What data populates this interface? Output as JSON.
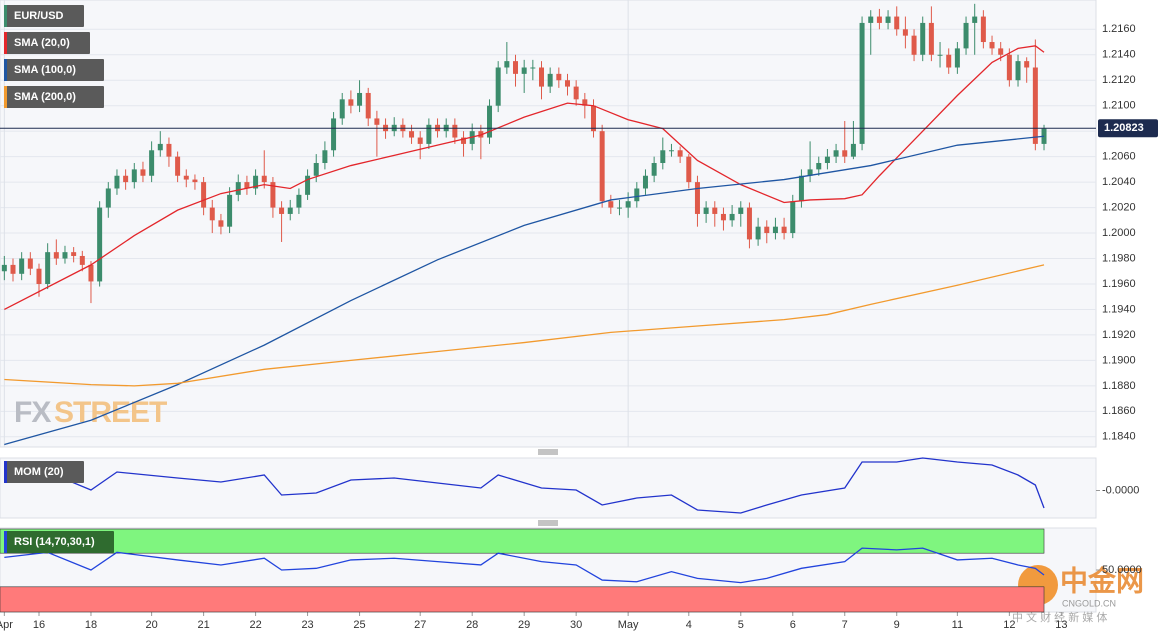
{
  "chart_data": [
    {
      "type": "candlestick",
      "title": "EUR/USD",
      "xlim": [
        -0.5,
        126
      ],
      "ylim": [
        1.1832,
        1.2183
      ],
      "xticks": [
        {
          "value": 0,
          "label": "Apr"
        },
        {
          "value": 4,
          "label": "16"
        },
        {
          "value": 10,
          "label": "18"
        },
        {
          "value": 17,
          "label": "20"
        },
        {
          "value": 23,
          "label": "21"
        },
        {
          "value": 29,
          "label": "22"
        },
        {
          "value": 35,
          "label": "23"
        },
        {
          "value": 41,
          "label": "25"
        },
        {
          "value": 48,
          "label": "27"
        },
        {
          "value": 54,
          "label": "28"
        },
        {
          "value": 60,
          "label": "29"
        },
        {
          "value": 66,
          "label": "30"
        },
        {
          "value": 72,
          "label": "May"
        },
        {
          "value": 79,
          "label": "4"
        },
        {
          "value": 85,
          "label": "5"
        },
        {
          "value": 91,
          "label": "6"
        },
        {
          "value": 97,
          "label": "7"
        },
        {
          "value": 103,
          "label": "9"
        },
        {
          "value": 110,
          "label": "11"
        },
        {
          "value": 116,
          "label": "12"
        },
        {
          "value": 122,
          "label": "13"
        }
      ],
      "yticks": [
        {
          "value": 1.184,
          "label": "1.1840"
        },
        {
          "value": 1.186,
          "label": "1.1860"
        },
        {
          "value": 1.188,
          "label": "1.1880"
        },
        {
          "value": 1.19,
          "label": "1.1900"
        },
        {
          "value": 1.192,
          "label": "1.1920"
        },
        {
          "value": 1.194,
          "label": "1.1940"
        },
        {
          "value": 1.196,
          "label": "1.1960"
        },
        {
          "value": 1.198,
          "label": "1.1980"
        },
        {
          "value": 1.2,
          "label": "1.2000"
        },
        {
          "value": 1.202,
          "label": "1.2020"
        },
        {
          "value": 1.204,
          "label": "1.2040"
        },
        {
          "value": 1.206,
          "label": "1.2060"
        },
        {
          "value": 1.208,
          "label": "1.2080"
        },
        {
          "value": 1.21,
          "label": "1.2100"
        },
        {
          "value": 1.212,
          "label": "1.2120"
        },
        {
          "value": 1.214,
          "label": "1.2140"
        },
        {
          "value": 1.216,
          "label": "1.2160"
        }
      ],
      "grid": true,
      "up_color": "#3c8c6c",
      "down_color": "#df5a4a",
      "last_price": 1.20823,
      "last_price_color": "#1d2b4f",
      "open": [
        1.197,
        1.1975,
        1.1968,
        1.198,
        1.1972,
        1.196,
        1.1985,
        1.198,
        1.1985,
        1.1982,
        1.1975,
        1.1962,
        1.202,
        1.2035,
        1.2045,
        1.204,
        1.205,
        1.2045,
        1.2065,
        1.207,
        1.206,
        1.2045,
        1.2042,
        1.204,
        1.202,
        1.201,
        1.2005,
        1.203,
        1.204,
        1.2035,
        1.2045,
        1.204,
        1.202,
        1.2015,
        1.202,
        1.203,
        1.2045,
        1.2055,
        1.2065,
        1.209,
        1.2105,
        1.21,
        1.211,
        1.209,
        1.2085,
        1.208,
        1.2085,
        1.208,
        1.2075,
        1.207,
        1.2085,
        1.208,
        1.2085,
        1.2075,
        1.207,
        1.208,
        1.2075,
        1.21,
        1.213,
        1.2135,
        1.2125,
        1.213,
        1.213,
        1.2115,
        1.2125,
        1.212,
        1.2115,
        1.2105,
        1.21,
        1.208,
        1.2025,
        1.202,
        1.202,
        1.2025,
        1.2035,
        1.2045,
        1.2055,
        1.2065,
        1.2065,
        1.206,
        1.204,
        1.2015,
        1.202,
        1.2015,
        1.201,
        1.2015,
        1.202,
        1.1995,
        1.2005,
        1.2,
        1.2005,
        1.2,
        1.2025,
        1.2045,
        1.205,
        1.2055,
        1.206,
        1.2065,
        1.206,
        1.207,
        1.2165,
        1.217,
        1.2165,
        1.217,
        1.216,
        1.2155,
        1.214,
        1.2165,
        1.214,
        1.214,
        1.213,
        1.2145,
        1.2165,
        1.217,
        1.215,
        1.2145,
        1.214,
        1.212,
        1.2135,
        1.213,
        1.207
      ],
      "high": [
        1.1982,
        1.198,
        1.1985,
        1.1985,
        1.1976,
        1.1992,
        1.1995,
        1.199,
        1.1989,
        1.1986,
        1.1978,
        1.2025,
        1.204,
        1.205,
        1.205,
        1.2055,
        1.2056,
        1.2072,
        1.208,
        1.2075,
        1.2064,
        1.205,
        1.2046,
        1.2044,
        1.2026,
        1.2015,
        1.2036,
        1.2046,
        1.2045,
        1.205,
        1.2065,
        1.2044,
        1.2025,
        1.2026,
        1.2035,
        1.205,
        1.2062,
        1.2072,
        1.2095,
        1.211,
        1.2112,
        1.212,
        1.2114,
        1.2096,
        1.209,
        1.2091,
        1.209,
        1.2085,
        1.208,
        1.209,
        1.209,
        1.209,
        1.209,
        1.208,
        1.2086,
        1.2085,
        1.2105,
        1.2135,
        1.215,
        1.214,
        1.2136,
        1.2136,
        1.2135,
        1.213,
        1.213,
        1.2125,
        1.212,
        1.211,
        1.2105,
        1.2085,
        1.203,
        1.2026,
        1.2032,
        1.204,
        1.205,
        1.206,
        1.2075,
        1.207,
        1.2068,
        1.2062,
        1.2045,
        1.2025,
        1.2025,
        1.202,
        1.2022,
        1.2025,
        1.2024,
        1.2012,
        1.201,
        1.2012,
        1.2012,
        1.203,
        1.205,
        1.2072,
        1.206,
        1.2066,
        1.207,
        1.2088,
        1.2088,
        1.217,
        1.2175,
        1.2176,
        1.2175,
        1.2178,
        1.217,
        1.216,
        1.217,
        1.2178,
        1.215,
        1.2145,
        1.215,
        1.217,
        1.218,
        1.2175,
        1.2155,
        1.215,
        1.2145,
        1.214,
        1.2138,
        1.2152,
        1.2085
      ],
      "low": [
        1.1963,
        1.1962,
        1.1963,
        1.1967,
        1.195,
        1.1956,
        1.1975,
        1.1976,
        1.1977,
        1.197,
        1.1945,
        1.1958,
        1.2012,
        1.203,
        1.2034,
        1.2035,
        1.204,
        1.204,
        1.206,
        1.2052,
        1.204,
        1.2036,
        1.2034,
        1.2014,
        1.2,
        1.1999,
        1.2,
        1.2025,
        1.203,
        1.203,
        1.2035,
        1.2012,
        1.1993,
        1.201,
        1.2015,
        1.2026,
        1.204,
        1.205,
        1.206,
        1.2085,
        1.2094,
        1.2095,
        1.2084,
        1.206,
        1.2074,
        1.2076,
        1.2075,
        1.207,
        1.2058,
        1.2066,
        1.2075,
        1.2075,
        1.207,
        1.206,
        1.2065,
        1.2058,
        1.207,
        1.2095,
        1.2125,
        1.2115,
        1.211,
        1.212,
        1.2105,
        1.211,
        1.2114,
        1.2108,
        1.21,
        1.209,
        1.2075,
        1.202,
        1.2015,
        1.2014,
        1.2012,
        1.202,
        1.203,
        1.204,
        1.205,
        1.206,
        1.2055,
        1.2035,
        1.2005,
        1.2008,
        1.2005,
        1.2002,
        1.2005,
        1.2005,
        1.1988,
        1.199,
        1.1992,
        1.1995,
        1.1995,
        1.1996,
        1.202,
        1.204,
        1.2045,
        1.205,
        1.2055,
        1.2055,
        1.2058,
        1.2065,
        1.214,
        1.216,
        1.216,
        1.2155,
        1.2145,
        1.2135,
        1.2135,
        1.2135,
        1.213,
        1.2125,
        1.2125,
        1.214,
        1.214,
        1.2145,
        1.214,
        1.2135,
        1.2115,
        1.2115,
        1.2118,
        1.2065,
        1.2065
      ],
      "close": [
        1.1975,
        1.1968,
        1.198,
        1.1972,
        1.196,
        1.1985,
        1.198,
        1.1985,
        1.1982,
        1.1975,
        1.1962,
        1.202,
        1.2035,
        1.2045,
        1.204,
        1.205,
        1.2045,
        1.2065,
        1.207,
        1.206,
        1.2045,
        1.2042,
        1.204,
        1.202,
        1.201,
        1.2005,
        1.203,
        1.204,
        1.2035,
        1.2045,
        1.204,
        1.202,
        1.2015,
        1.202,
        1.203,
        1.2045,
        1.2055,
        1.2065,
        1.209,
        1.2105,
        1.21,
        1.211,
        1.209,
        1.2085,
        1.208,
        1.2085,
        1.208,
        1.2075,
        1.207,
        1.2085,
        1.208,
        1.2085,
        1.2075,
        1.207,
        1.208,
        1.2075,
        1.21,
        1.213,
        1.2135,
        1.2125,
        1.213,
        1.213,
        1.2115,
        1.2125,
        1.212,
        1.2115,
        1.2105,
        1.21,
        1.208,
        1.2025,
        1.202,
        1.202,
        1.2025,
        1.2035,
        1.2045,
        1.2055,
        1.2065,
        1.2065,
        1.206,
        1.204,
        1.2015,
        1.202,
        1.2015,
        1.201,
        1.2015,
        1.202,
        1.1995,
        1.2005,
        1.2,
        1.2005,
        1.2,
        1.2025,
        1.2045,
        1.205,
        1.2055,
        1.206,
        1.2065,
        1.206,
        1.207,
        1.2165,
        1.217,
        1.2165,
        1.217,
        1.216,
        1.2155,
        1.214,
        1.2165,
        1.214,
        1.214,
        1.213,
        1.2145,
        1.2165,
        1.217,
        1.215,
        1.2145,
        1.214,
        1.212,
        1.2135,
        1.213,
        1.207,
        1.2082
      ],
      "overlays": [
        {
          "name": "SMA (20,0)",
          "color": "#e3262b",
          "x": [
            0,
            10,
            15,
            20,
            25,
            30,
            33,
            35,
            40,
            45,
            50,
            55,
            60,
            65,
            68,
            72,
            76,
            80,
            85,
            90,
            93,
            97,
            99,
            101,
            105,
            110,
            114,
            117,
            119,
            120
          ],
          "values": [
            1.194,
            1.1975,
            1.1998,
            1.2018,
            1.2031,
            1.2038,
            1.2035,
            1.2042,
            1.2053,
            1.2061,
            1.2069,
            1.2077,
            1.2091,
            1.2102,
            1.21,
            1.2089,
            1.2082,
            1.2057,
            1.2038,
            1.2024,
            1.2026,
            1.2027,
            1.203,
            1.2045,
            1.2073,
            1.2108,
            1.2134,
            1.2145,
            1.2147,
            1.2142
          ]
        },
        {
          "name": "SMA (100,0)",
          "color": "#1f56a3",
          "x": [
            0,
            10,
            20,
            30,
            40,
            50,
            60,
            70,
            80,
            90,
            100,
            110,
            120
          ],
          "values": [
            1.1834,
            1.1853,
            1.1881,
            1.1912,
            1.1947,
            1.1979,
            1.2006,
            1.2026,
            1.2035,
            1.2042,
            1.2053,
            1.2069,
            1.2076
          ]
        },
        {
          "name": "SMA (200,0)",
          "color": "#f29a2e",
          "x": [
            0,
            10,
            15,
            20,
            30,
            40,
            50,
            60,
            70,
            80,
            90,
            95,
            100,
            110,
            120
          ],
          "values": [
            1.1885,
            1.1881,
            1.188,
            1.1882,
            1.1893,
            1.19,
            1.1907,
            1.1914,
            1.1922,
            1.1927,
            1.1932,
            1.1936,
            1.1944,
            1.1959,
            1.1975
          ]
        }
      ]
    },
    {
      "type": "line",
      "title": "MOM (20)",
      "color": "#2233cc",
      "xlim": [
        -0.5,
        126
      ],
      "ylim": [
        -0.0055,
        0.0065
      ],
      "yticks": [
        {
          "value": 0,
          "label": "-0.0000"
        }
      ],
      "x": [
        0,
        5,
        10,
        13,
        20,
        25,
        30,
        32,
        36,
        40,
        45,
        50,
        55,
        57,
        62,
        66,
        69,
        73,
        77,
        80,
        85,
        88,
        92,
        97,
        99,
        103,
        106,
        110,
        114,
        117,
        119,
        120
      ],
      "values": [
        0.0031,
        0.0037,
        0.0001,
        0.0037,
        0.0025,
        0.0017,
        0.0031,
        -0.0009,
        -0.0005,
        0.0021,
        0.0025,
        0.0015,
        0.0005,
        0.0031,
        0.0005,
        0.0001,
        -0.0029,
        -0.0015,
        -0.0009,
        -0.0039,
        -0.0045,
        -0.0029,
        -0.0009,
        0.0005,
        0.0057,
        0.0057,
        0.0065,
        0.0057,
        0.0051,
        0.0031,
        0.0011,
        -0.0035
      ]
    },
    {
      "type": "line",
      "title": "RSI (14,70,30,1)",
      "color": "#2244dd",
      "xlim": [
        -0.5,
        126
      ],
      "ylim": [
        0,
        100
      ],
      "yticks": [
        {
          "value": 50,
          "label": "50.0000"
        }
      ],
      "levels": [
        30,
        70
      ],
      "overbought_color": "#7ff57f",
      "oversold_color": "#ff7a7a",
      "x": [
        0,
        5,
        10,
        13,
        20,
        25,
        30,
        32,
        36,
        40,
        45,
        50,
        55,
        57,
        62,
        66,
        69,
        73,
        77,
        80,
        85,
        88,
        92,
        97,
        99,
        103,
        106,
        110,
        114,
        117,
        119,
        120
      ],
      "values": [
        65,
        71,
        50,
        71,
        62,
        56,
        64,
        50,
        52,
        62,
        64,
        60,
        56,
        70,
        60,
        56,
        38,
        36,
        48,
        40,
        35,
        40,
        52,
        60,
        76,
        74,
        76,
        62,
        64,
        56,
        52,
        44
      ]
    }
  ],
  "watermarks": {
    "fx": "FX",
    "street": "STREET",
    "cngold": "中金网",
    "cngold_url": "CNGOLD.CN",
    "cngold_tagline": "中 文 财 经 新 媒 体"
  }
}
